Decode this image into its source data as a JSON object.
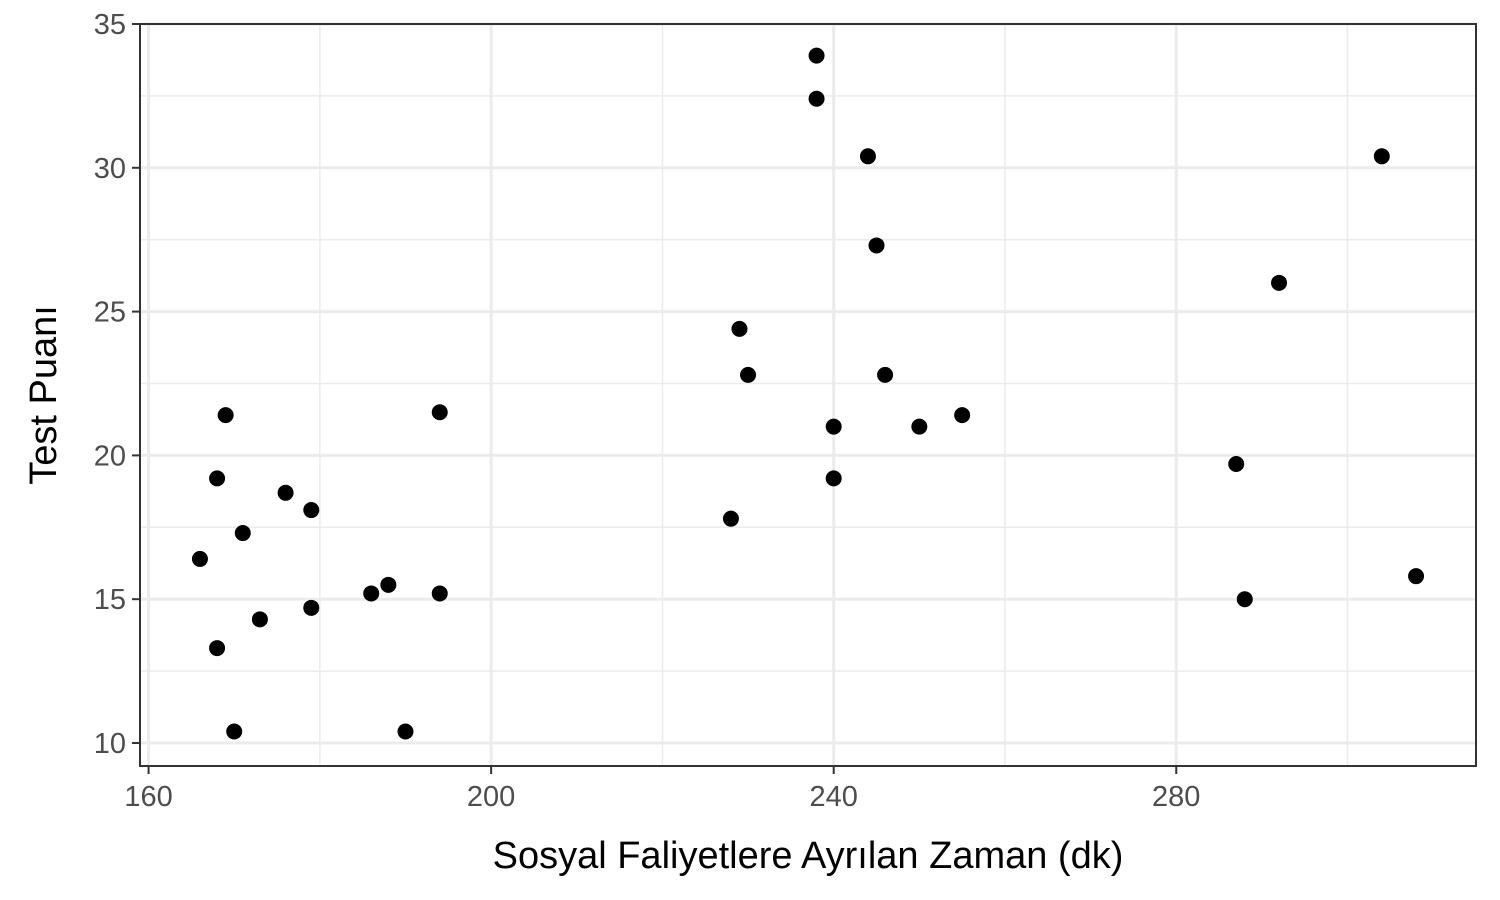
{
  "chart_data": {
    "type": "scatter",
    "title": "",
    "xlabel": "Sosyal Faliyetlere Ayrılan Zaman (dk)",
    "ylabel": "Test Puanı",
    "xlim": [
      159,
      315
    ],
    "ylim": [
      9.2,
      35
    ],
    "x_ticks": [
      160,
      200,
      240,
      280
    ],
    "y_ticks": [
      10,
      15,
      20,
      25,
      30,
      35
    ],
    "x_minor_ticks": [
      180,
      220,
      260,
      300
    ],
    "y_minor_ticks": [
      12.5,
      17.5,
      22.5,
      27.5,
      32.5
    ],
    "grid": true,
    "colors": {
      "point": "#000000",
      "grid": "#ebebeb",
      "panel_border": "#333333",
      "tick_text": "#4d4d4d"
    },
    "points": [
      {
        "x": 166,
        "y": 16.4
      },
      {
        "x": 168,
        "y": 19.2
      },
      {
        "x": 168,
        "y": 13.3
      },
      {
        "x": 169,
        "y": 21.4
      },
      {
        "x": 170,
        "y": 10.4
      },
      {
        "x": 171,
        "y": 17.3
      },
      {
        "x": 173,
        "y": 14.3
      },
      {
        "x": 176,
        "y": 18.7
      },
      {
        "x": 179,
        "y": 18.1
      },
      {
        "x": 179,
        "y": 14.7
      },
      {
        "x": 186,
        "y": 15.2
      },
      {
        "x": 188,
        "y": 15.5
      },
      {
        "x": 190,
        "y": 10.4
      },
      {
        "x": 194,
        "y": 21.5
      },
      {
        "x": 194,
        "y": 15.2
      },
      {
        "x": 228,
        "y": 17.8
      },
      {
        "x": 229,
        "y": 24.4
      },
      {
        "x": 230,
        "y": 22.8
      },
      {
        "x": 238,
        "y": 33.9
      },
      {
        "x": 238,
        "y": 32.4
      },
      {
        "x": 240,
        "y": 21.0
      },
      {
        "x": 240,
        "y": 19.2
      },
      {
        "x": 244,
        "y": 30.4
      },
      {
        "x": 245,
        "y": 27.3
      },
      {
        "x": 246,
        "y": 22.8
      },
      {
        "x": 250,
        "y": 21.0
      },
      {
        "x": 255,
        "y": 21.4
      },
      {
        "x": 287,
        "y": 19.7
      },
      {
        "x": 288,
        "y": 15.0
      },
      {
        "x": 292,
        "y": 26.0
      },
      {
        "x": 304,
        "y": 30.4
      },
      {
        "x": 308,
        "y": 15.8
      }
    ]
  }
}
